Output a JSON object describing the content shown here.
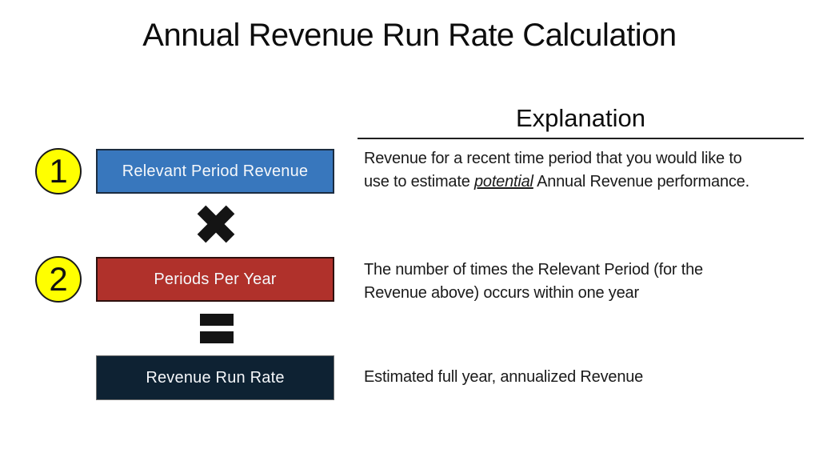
{
  "title": "Annual Revenue Run Rate Calculation",
  "explanation": {
    "header": "Explanation"
  },
  "rows": [
    {
      "badge": "1",
      "box_label": "Relevant Period Revenue",
      "box_color": "#3877BD",
      "explanation_line1": "Revenue for a recent time period that you would like to",
      "explanation_line2_pre": "use to estimate ",
      "explanation_line2_em": "potential",
      "explanation_line2_post": " Annual Revenue performance."
    },
    {
      "badge": "2",
      "box_label": "Periods Per Year",
      "box_color": "#B0312B",
      "explanation_line1": "The number of times the Relevant Period (for the",
      "explanation_line2": "Revenue above) occurs within one year"
    },
    {
      "box_label": "Revenue Run Rate",
      "box_color": "#0E2233",
      "explanation_line1": "Estimated full year, annualized Revenue"
    }
  ],
  "icons": {
    "multiply": "heavy-multiplication-x",
    "equals": "heavy-equals-sign"
  },
  "colors": {
    "badge_fill": "#FFFF00",
    "box1_fill": "#3877BD",
    "box2_fill": "#B0312B",
    "box3_fill": "#0E2233",
    "operator_color": "#141414",
    "text_color": "#1a1a1a"
  }
}
